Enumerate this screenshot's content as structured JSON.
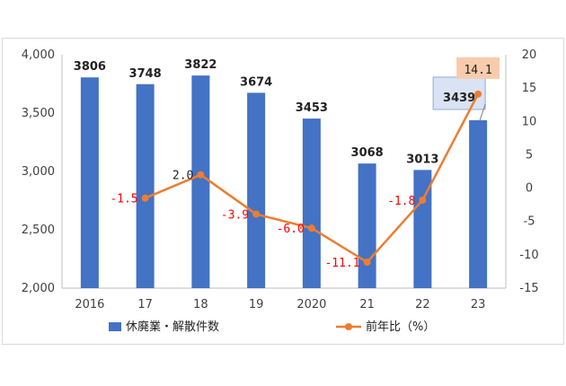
{
  "chart_data": {
    "type": "bar+line",
    "categories": [
      "2016",
      "17",
      "18",
      "19",
      "2020",
      "21",
      "22",
      "23"
    ],
    "series": [
      {
        "name": "休廃業・解散件数",
        "type": "bar",
        "axis": "left",
        "color": "#4472C4",
        "values": [
          3806,
          3748,
          3822,
          3674,
          3453,
          3068,
          3013,
          3439
        ],
        "labels": [
          "3806",
          "3748",
          "3822",
          "3674",
          "3453",
          "3068",
          "3013",
          "3439"
        ],
        "highlight_index": 7,
        "highlight_fill": "#DAE3F3"
      },
      {
        "name": "前年比（%）",
        "type": "line",
        "axis": "right",
        "color": "#ED7D31",
        "values": [
          null,
          -1.5,
          2.0,
          -3.9,
          -6.0,
          -11.1,
          -1.8,
          14.1
        ],
        "labels": [
          "",
          "-1.5",
          "2.0",
          "-3.9",
          "-6.0",
          "-11.1",
          "-1.8",
          "14.1"
        ],
        "negative_label_color": "#FF0000",
        "positive_label_color": "#222222",
        "highlight_index": 7,
        "highlight_fill": "#F8CBAD"
      }
    ],
    "y_left": {
      "range": [
        2000,
        4000
      ],
      "ticks": [
        2000,
        2500,
        3000,
        3500,
        4000
      ],
      "tick_labels": [
        "2,000",
        "2,500",
        "3,000",
        "3,500",
        "4,000"
      ]
    },
    "y_right": {
      "range": [
        -15,
        20
      ],
      "ticks": [
        -15,
        -10,
        -5,
        0,
        5,
        10,
        15,
        20
      ],
      "tick_labels": [
        "-15",
        "-10",
        "-5",
        "0",
        "5",
        "10",
        "15",
        "20"
      ]
    },
    "grid": false,
    "legend": "bottom"
  }
}
